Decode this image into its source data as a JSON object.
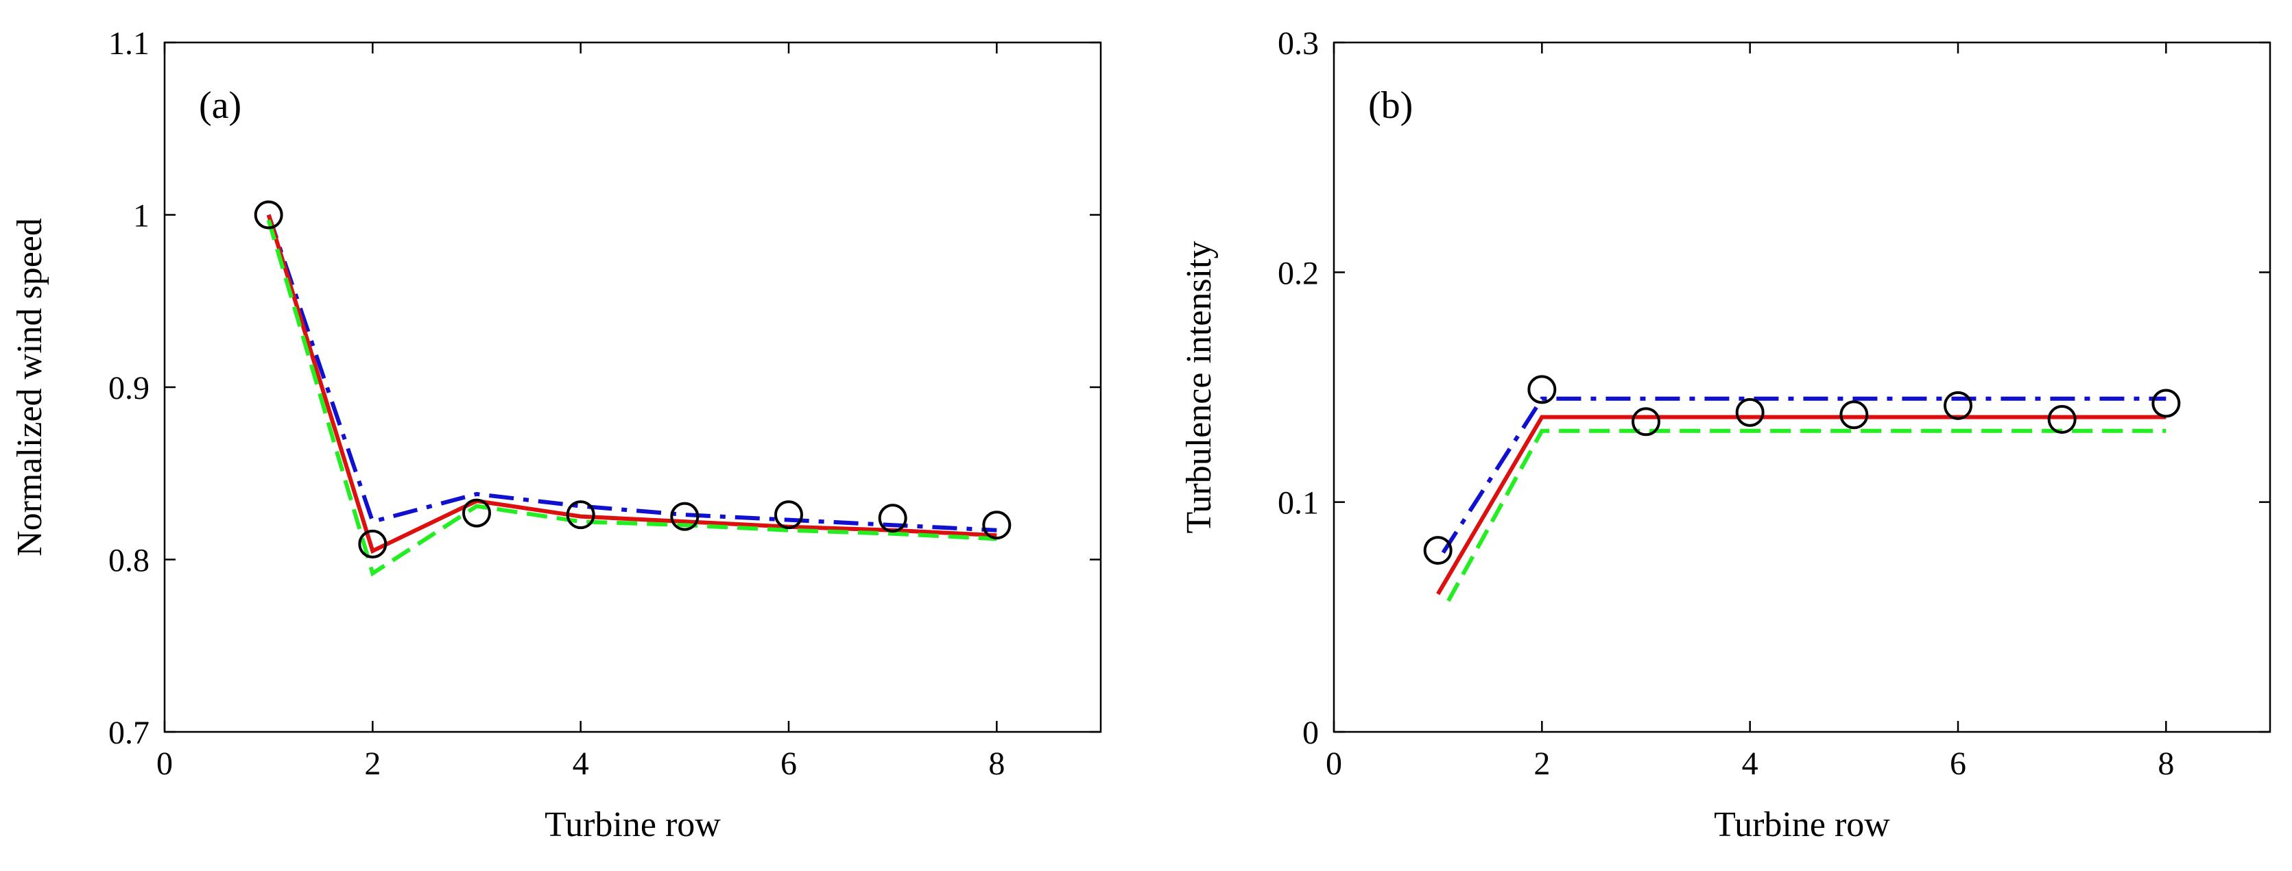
{
  "chart_data": [
    {
      "type": "line",
      "panel_label": "(a)",
      "xlabel": "Turbine row",
      "ylabel": "Normalized wind speed",
      "xlim": [
        0,
        9
      ],
      "ylim": [
        0.7,
        1.1
      ],
      "xticks": [
        0,
        2,
        4,
        6,
        8
      ],
      "xtick_labels": [
        "0",
        "2",
        "4",
        "6",
        "8"
      ],
      "yticks": [
        0.7,
        0.8,
        0.9,
        1.0,
        1.1
      ],
      "ytick_labels": [
        "0.7",
        "0.8",
        "0.9",
        "1",
        "1.1"
      ],
      "grid": false,
      "series": [
        {
          "name": "blue-dashdot",
          "style": "dashdot",
          "color": "#1010d0",
          "x": [
            1,
            2,
            3,
            4,
            5,
            6,
            7,
            8
          ],
          "y": [
            1.0,
            0.822,
            0.838,
            0.831,
            0.826,
            0.823,
            0.82,
            0.817
          ]
        },
        {
          "name": "red-solid",
          "style": "solid",
          "color": "#dd1010",
          "x": [
            1,
            2,
            3,
            4,
            5,
            6,
            7,
            8
          ],
          "y": [
            1.0,
            0.805,
            0.834,
            0.825,
            0.822,
            0.819,
            0.817,
            0.814
          ]
        },
        {
          "name": "green-dashed",
          "style": "dashed",
          "color": "#22ee22",
          "x": [
            1,
            2,
            3,
            4,
            5,
            6,
            7,
            8
          ],
          "y": [
            0.997,
            0.792,
            0.831,
            0.822,
            0.82,
            0.817,
            0.815,
            0.812
          ]
        },
        {
          "name": "measured",
          "style": "markers",
          "color": "#000000",
          "x": [
            1,
            2,
            3,
            4,
            5,
            6,
            7,
            8
          ],
          "y": [
            1.0,
            0.809,
            0.827,
            0.826,
            0.825,
            0.826,
            0.824,
            0.82
          ]
        }
      ]
    },
    {
      "type": "line",
      "panel_label": "(b)",
      "xlabel": "Turbine row",
      "ylabel": "Turbulence intensity",
      "xlim": [
        0,
        9
      ],
      "ylim": [
        0,
        0.3
      ],
      "xticks": [
        0,
        2,
        4,
        6,
        8
      ],
      "xtick_labels": [
        "0",
        "2",
        "4",
        "6",
        "8"
      ],
      "yticks": [
        0,
        0.1,
        0.2,
        0.3
      ],
      "ytick_labels": [
        "0",
        "0.1",
        "0.2",
        "0.3"
      ],
      "grid": false,
      "series": [
        {
          "name": "blue-dashdot",
          "style": "dashdot",
          "color": "#1010d0",
          "x": [
            1.05,
            2,
            8
          ],
          "y": [
            0.078,
            0.145,
            0.145
          ]
        },
        {
          "name": "red-solid",
          "style": "solid",
          "color": "#dd1010",
          "x": [
            1,
            2,
            8
          ],
          "y": [
            0.06,
            0.137,
            0.137
          ]
        },
        {
          "name": "green-dashed",
          "style": "dashed",
          "color": "#22ee22",
          "x": [
            1.1,
            2,
            8
          ],
          "y": [
            0.057,
            0.131,
            0.131
          ]
        },
        {
          "name": "measured",
          "style": "markers",
          "color": "#000000",
          "x": [
            1,
            2,
            3,
            4,
            5,
            6,
            7,
            8
          ],
          "y": [
            0.079,
            0.149,
            0.135,
            0.139,
            0.138,
            0.142,
            0.136,
            0.143
          ]
        }
      ]
    }
  ]
}
